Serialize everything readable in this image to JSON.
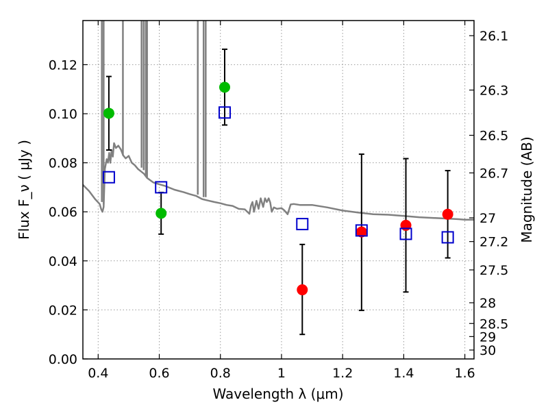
{
  "chart_data": {
    "type": "scatter",
    "xlabel": "Wavelength  λ (μm)",
    "ylabel": "Flux  F_ν  ( μJy )",
    "ylabel_right": "Magnitude (AB)",
    "xlim": [
      0.35,
      1.63
    ],
    "ylim": [
      0.0,
      0.138
    ],
    "x_ticks": [
      0.4,
      0.6,
      0.8,
      1.0,
      1.2,
      1.4,
      1.6
    ],
    "x_tick_labels": [
      "0.4",
      "0.6",
      "0.8",
      "1",
      "1.2",
      "1.4",
      "1.6"
    ],
    "y_ticks": [
      0.0,
      0.02,
      0.04,
      0.06,
      0.08,
      0.1,
      0.12
    ],
    "y_tick_labels": [
      "0.00",
      "0.02",
      "0.04",
      "0.06",
      "0.08",
      "0.10",
      "0.12"
    ],
    "right_ticks": [
      26.1,
      26.3,
      26.5,
      26.7,
      27.0,
      27.2,
      27.5,
      28.0,
      28.5,
      29.0,
      30.0
    ],
    "right_tick_labels": [
      "26.1",
      "26.3",
      "26.5",
      "26.7",
      "27",
      "27.2",
      "27.5",
      "28",
      "28.5",
      "29",
      "30"
    ],
    "grid": true,
    "series": [
      {
        "marker": "circle",
        "color": "#00bb00",
        "points": [
          {
            "x": 0.435,
            "y": 0.1002,
            "err": [
              0.0852,
              0.1152
            ]
          },
          {
            "x": 0.606,
            "y": 0.0594,
            "err": [
              0.0509,
              0.0679
            ]
          },
          {
            "x": 0.814,
            "y": 0.1108,
            "err": [
              0.0954,
              0.1263
            ]
          }
        ]
      },
      {
        "marker": "circle",
        "color": "#ff0000",
        "points": [
          {
            "x": 1.068,
            "y": 0.0282,
            "err": [
              0.01,
              0.0467
            ]
          },
          {
            "x": 1.262,
            "y": 0.0518,
            "err": [
              0.0198,
              0.0835
            ]
          },
          {
            "x": 1.407,
            "y": 0.0545,
            "err": [
              0.0273,
              0.0817
            ]
          },
          {
            "x": 1.544,
            "y": 0.059,
            "err": [
              0.0412,
              0.0768
            ]
          }
        ]
      },
      {
        "marker": "open-square",
        "color": "#0000cc",
        "points": [
          {
            "x": 0.435,
            "y": 0.0741
          },
          {
            "x": 0.606,
            "y": 0.07
          },
          {
            "x": 0.814,
            "y": 0.1005
          },
          {
            "x": 1.068,
            "y": 0.055
          },
          {
            "x": 1.262,
            "y": 0.0524
          },
          {
            "x": 1.407,
            "y": 0.051
          },
          {
            "x": 1.544,
            "y": 0.0496
          }
        ]
      }
    ],
    "template_color": "#808080",
    "template_line": [
      [
        0.35,
        0.071
      ],
      [
        0.37,
        0.0685
      ],
      [
        0.39,
        0.0652
      ],
      [
        0.405,
        0.0632
      ],
      [
        0.41,
        0.061
      ],
      [
        0.414,
        0.06
      ],
      [
        0.418,
        0.062
      ],
      [
        0.422,
        0.0775
      ],
      [
        0.428,
        0.0815
      ],
      [
        0.432,
        0.08
      ],
      [
        0.436,
        0.084
      ],
      [
        0.44,
        0.08
      ],
      [
        0.444,
        0.0852
      ],
      [
        0.448,
        0.0825
      ],
      [
        0.452,
        0.088
      ],
      [
        0.458,
        0.086
      ],
      [
        0.466,
        0.087
      ],
      [
        0.474,
        0.0855
      ],
      [
        0.482,
        0.083
      ],
      [
        0.49,
        0.0818
      ],
      [
        0.5,
        0.0828
      ],
      [
        0.51,
        0.08
      ],
      [
        0.52,
        0.079
      ],
      [
        0.53,
        0.0775
      ],
      [
        0.54,
        0.0765
      ],
      [
        0.55,
        0.0755
      ],
      [
        0.56,
        0.0738
      ],
      [
        0.58,
        0.072
      ],
      [
        0.6,
        0.0712
      ],
      [
        0.62,
        0.0705
      ],
      [
        0.65,
        0.069
      ],
      [
        0.68,
        0.068
      ],
      [
        0.7,
        0.0672
      ],
      [
        0.72,
        0.0665
      ],
      [
        0.74,
        0.0652
      ],
      [
        0.76,
        0.0646
      ],
      [
        0.78,
        0.064
      ],
      [
        0.8,
        0.0635
      ],
      [
        0.82,
        0.0628
      ],
      [
        0.84,
        0.0624
      ],
      [
        0.86,
        0.0612
      ],
      [
        0.88,
        0.061
      ],
      [
        0.895,
        0.0592
      ],
      [
        0.9,
        0.0625
      ],
      [
        0.905,
        0.064
      ],
      [
        0.91,
        0.06
      ],
      [
        0.918,
        0.0645
      ],
      [
        0.925,
        0.0612
      ],
      [
        0.932,
        0.0655
      ],
      [
        0.94,
        0.062
      ],
      [
        0.946,
        0.0655
      ],
      [
        0.952,
        0.064
      ],
      [
        0.958,
        0.0655
      ],
      [
        0.963,
        0.0638
      ],
      [
        0.968,
        0.06
      ],
      [
        0.975,
        0.0618
      ],
      [
        0.985,
        0.0612
      ],
      [
        1.0,
        0.0615
      ],
      [
        1.01,
        0.0605
      ],
      [
        1.02,
        0.059
      ],
      [
        1.03,
        0.063
      ],
      [
        1.04,
        0.0632
      ],
      [
        1.06,
        0.0628
      ],
      [
        1.08,
        0.0628
      ],
      [
        1.1,
        0.0628
      ],
      [
        1.15,
        0.0618
      ],
      [
        1.2,
        0.0605
      ],
      [
        1.25,
        0.0597
      ],
      [
        1.3,
        0.059
      ],
      [
        1.35,
        0.0588
      ],
      [
        1.4,
        0.0583
      ],
      [
        1.45,
        0.0578
      ],
      [
        1.5,
        0.0575
      ],
      [
        1.55,
        0.0572
      ],
      [
        1.58,
        0.057
      ],
      [
        1.6,
        0.0568
      ],
      [
        1.63,
        0.0568
      ]
    ],
    "template_spikes": [
      [
        0.412,
        0.064
      ],
      [
        0.418,
        0.063
      ],
      [
        0.481,
        0.083
      ],
      [
        0.542,
        0.078
      ],
      [
        0.549,
        0.077
      ],
      [
        0.556,
        0.075
      ],
      [
        0.56,
        0.074
      ],
      [
        0.726,
        0.067
      ],
      [
        0.745,
        0.066
      ],
      [
        0.752,
        0.066
      ]
    ]
  }
}
